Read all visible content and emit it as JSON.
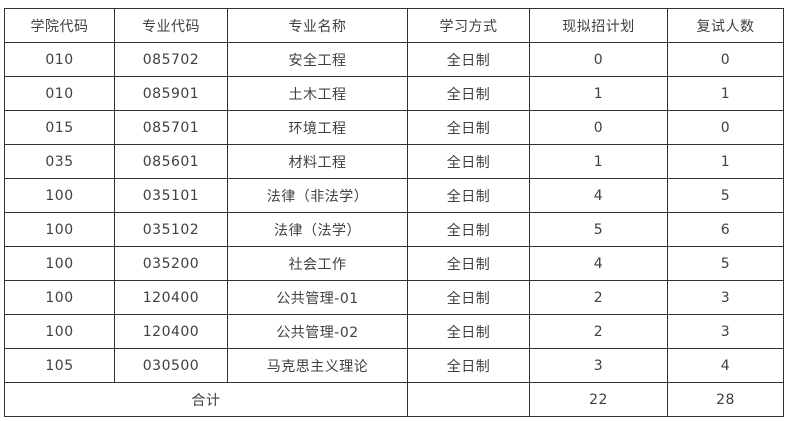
{
  "table": {
    "headers": {
      "college_code": "学院代码",
      "major_code": "专业代码",
      "major_name": "专业名称",
      "study_mode": "学习方式",
      "planned_enrollment": "现拟招计划",
      "retest_count": "复试人数"
    },
    "rows": [
      {
        "college_code": "010",
        "major_code": "085702",
        "major_name": "安全工程",
        "study_mode": "全日制",
        "planned": "0",
        "retest": "0"
      },
      {
        "college_code": "010",
        "major_code": "085901",
        "major_name": "土木工程",
        "study_mode": "全日制",
        "planned": "1",
        "retest": "1"
      },
      {
        "college_code": "015",
        "major_code": "085701",
        "major_name": "环境工程",
        "study_mode": "全日制",
        "planned": "0",
        "retest": "0"
      },
      {
        "college_code": "035",
        "major_code": "085601",
        "major_name": "材料工程",
        "study_mode": "全日制",
        "planned": "1",
        "retest": "1"
      },
      {
        "college_code": "100",
        "major_code": "035101",
        "major_name": "法律（非法学）",
        "study_mode": "全日制",
        "planned": "4",
        "retest": "5"
      },
      {
        "college_code": "100",
        "major_code": "035102",
        "major_name": "法律（法学）",
        "study_mode": "全日制",
        "planned": "5",
        "retest": "6"
      },
      {
        "college_code": "100",
        "major_code": "035200",
        "major_name": "社会工作",
        "study_mode": "全日制",
        "planned": "4",
        "retest": "5"
      },
      {
        "college_code": "100",
        "major_code": "120400",
        "major_name": "公共管理-01",
        "study_mode": "全日制",
        "planned": "2",
        "retest": "3"
      },
      {
        "college_code": "100",
        "major_code": "120400",
        "major_name": "公共管理-02",
        "study_mode": "全日制",
        "planned": "2",
        "retest": "3"
      },
      {
        "college_code": "105",
        "major_code": "030500",
        "major_name": "马克思主义理论",
        "study_mode": "全日制",
        "planned": "3",
        "retest": "4"
      }
    ],
    "footer": {
      "label": "合计",
      "study_mode": "",
      "planned_total": "22",
      "retest_total": "28"
    },
    "colors": {
      "border": "#333333",
      "text": "#404040",
      "background": "#ffffff"
    }
  }
}
